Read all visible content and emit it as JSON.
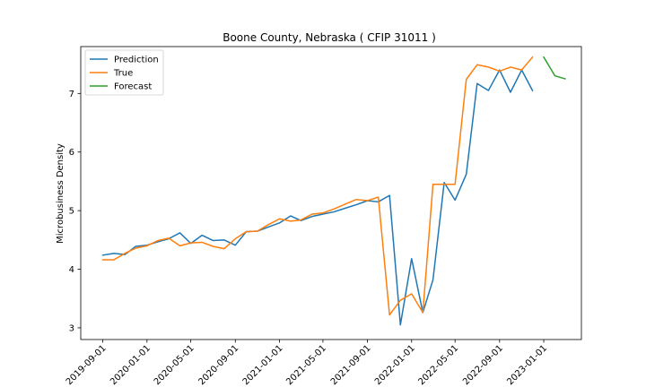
{
  "chart_data": {
    "type": "line",
    "title": "Boone County, Nebraska ( CFIP 31011 )",
    "xlabel": "",
    "ylabel": "Microbusiness Density",
    "xlim": [
      "2019-07-02",
      "2023-04-15"
    ],
    "ylim": [
      2.8,
      7.8
    ],
    "x_ticks": [
      "2019-09-01",
      "2020-01-01",
      "2020-05-01",
      "2020-09-01",
      "2021-01-01",
      "2021-05-01",
      "2021-09-01",
      "2022-01-01",
      "2022-05-01",
      "2022-09-01",
      "2023-01-01"
    ],
    "y_ticks": [
      3,
      4,
      5,
      6,
      7
    ],
    "grid": false,
    "legend_position": "top-left",
    "series": [
      {
        "name": "Prediction",
        "color": "#1f77b4",
        "points": [
          [
            "2019-09-01",
            4.24
          ],
          [
            "2019-10-01",
            4.27
          ],
          [
            "2019-11-01",
            4.25
          ],
          [
            "2019-12-01",
            4.39
          ],
          [
            "2020-01-01",
            4.41
          ],
          [
            "2020-02-01",
            4.47
          ],
          [
            "2020-03-01",
            4.52
          ],
          [
            "2020-04-01",
            4.62
          ],
          [
            "2020-05-01",
            4.44
          ],
          [
            "2020-06-01",
            4.58
          ],
          [
            "2020-07-01",
            4.49
          ],
          [
            "2020-08-01",
            4.5
          ],
          [
            "2020-09-01",
            4.41
          ],
          [
            "2020-10-01",
            4.64
          ],
          [
            "2020-11-01",
            4.65
          ],
          [
            "2020-12-01",
            4.72
          ],
          [
            "2021-01-01",
            4.79
          ],
          [
            "2021-02-01",
            4.91
          ],
          [
            "2021-03-01",
            4.83
          ],
          [
            "2021-04-01",
            4.9
          ],
          [
            "2021-05-01",
            4.94
          ],
          [
            "2021-06-01",
            4.98
          ],
          [
            "2021-07-01",
            5.04
          ],
          [
            "2021-08-01",
            5.1
          ],
          [
            "2021-09-01",
            5.17
          ],
          [
            "2021-10-01",
            5.15
          ],
          [
            "2021-11-01",
            5.26
          ],
          [
            "2021-12-01",
            3.05
          ],
          [
            "2022-01-01",
            4.18
          ],
          [
            "2022-02-01",
            3.26
          ],
          [
            "2022-03-01",
            3.82
          ],
          [
            "2022-04-01",
            5.48
          ],
          [
            "2022-05-01",
            5.18
          ],
          [
            "2022-06-01",
            5.62
          ],
          [
            "2022-07-01",
            7.17
          ],
          [
            "2022-08-01",
            7.05
          ],
          [
            "2022-09-01",
            7.4
          ],
          [
            "2022-10-01",
            7.02
          ],
          [
            "2022-11-01",
            7.4
          ],
          [
            "2022-12-01",
            7.05
          ]
        ]
      },
      {
        "name": "True",
        "color": "#ff7f0e",
        "points": [
          [
            "2019-09-01",
            4.16
          ],
          [
            "2019-10-01",
            4.16
          ],
          [
            "2019-11-01",
            4.27
          ],
          [
            "2019-12-01",
            4.36
          ],
          [
            "2020-01-01",
            4.4
          ],
          [
            "2020-02-01",
            4.49
          ],
          [
            "2020-03-01",
            4.53
          ],
          [
            "2020-04-01",
            4.4
          ],
          [
            "2020-05-01",
            4.45
          ],
          [
            "2020-06-01",
            4.46
          ],
          [
            "2020-07-01",
            4.39
          ],
          [
            "2020-08-01",
            4.35
          ],
          [
            "2020-09-01",
            4.52
          ],
          [
            "2020-10-01",
            4.64
          ],
          [
            "2020-11-01",
            4.65
          ],
          [
            "2020-12-01",
            4.76
          ],
          [
            "2021-01-01",
            4.86
          ],
          [
            "2021-02-01",
            4.82
          ],
          [
            "2021-03-01",
            4.84
          ],
          [
            "2021-04-01",
            4.94
          ],
          [
            "2021-05-01",
            4.96
          ],
          [
            "2021-06-01",
            5.03
          ],
          [
            "2021-07-01",
            5.11
          ],
          [
            "2021-08-01",
            5.19
          ],
          [
            "2021-09-01",
            5.17
          ],
          [
            "2021-10-01",
            5.23
          ],
          [
            "2021-11-01",
            3.22
          ],
          [
            "2021-12-01",
            3.47
          ],
          [
            "2022-01-01",
            3.58
          ],
          [
            "2022-02-01",
            3.26
          ],
          [
            "2022-03-01",
            5.45
          ],
          [
            "2022-04-01",
            5.45
          ],
          [
            "2022-05-01",
            5.45
          ],
          [
            "2022-06-01",
            7.24
          ],
          [
            "2022-07-01",
            7.49
          ],
          [
            "2022-08-01",
            7.45
          ],
          [
            "2022-09-01",
            7.38
          ],
          [
            "2022-10-01",
            7.45
          ],
          [
            "2022-11-01",
            7.4
          ],
          [
            "2022-12-01",
            7.62
          ]
        ]
      },
      {
        "name": "Forecast",
        "color": "#2ca02c",
        "points": [
          [
            "2023-01-01",
            7.62
          ],
          [
            "2023-02-01",
            7.3
          ],
          [
            "2023-03-01",
            7.25
          ]
        ]
      }
    ]
  }
}
